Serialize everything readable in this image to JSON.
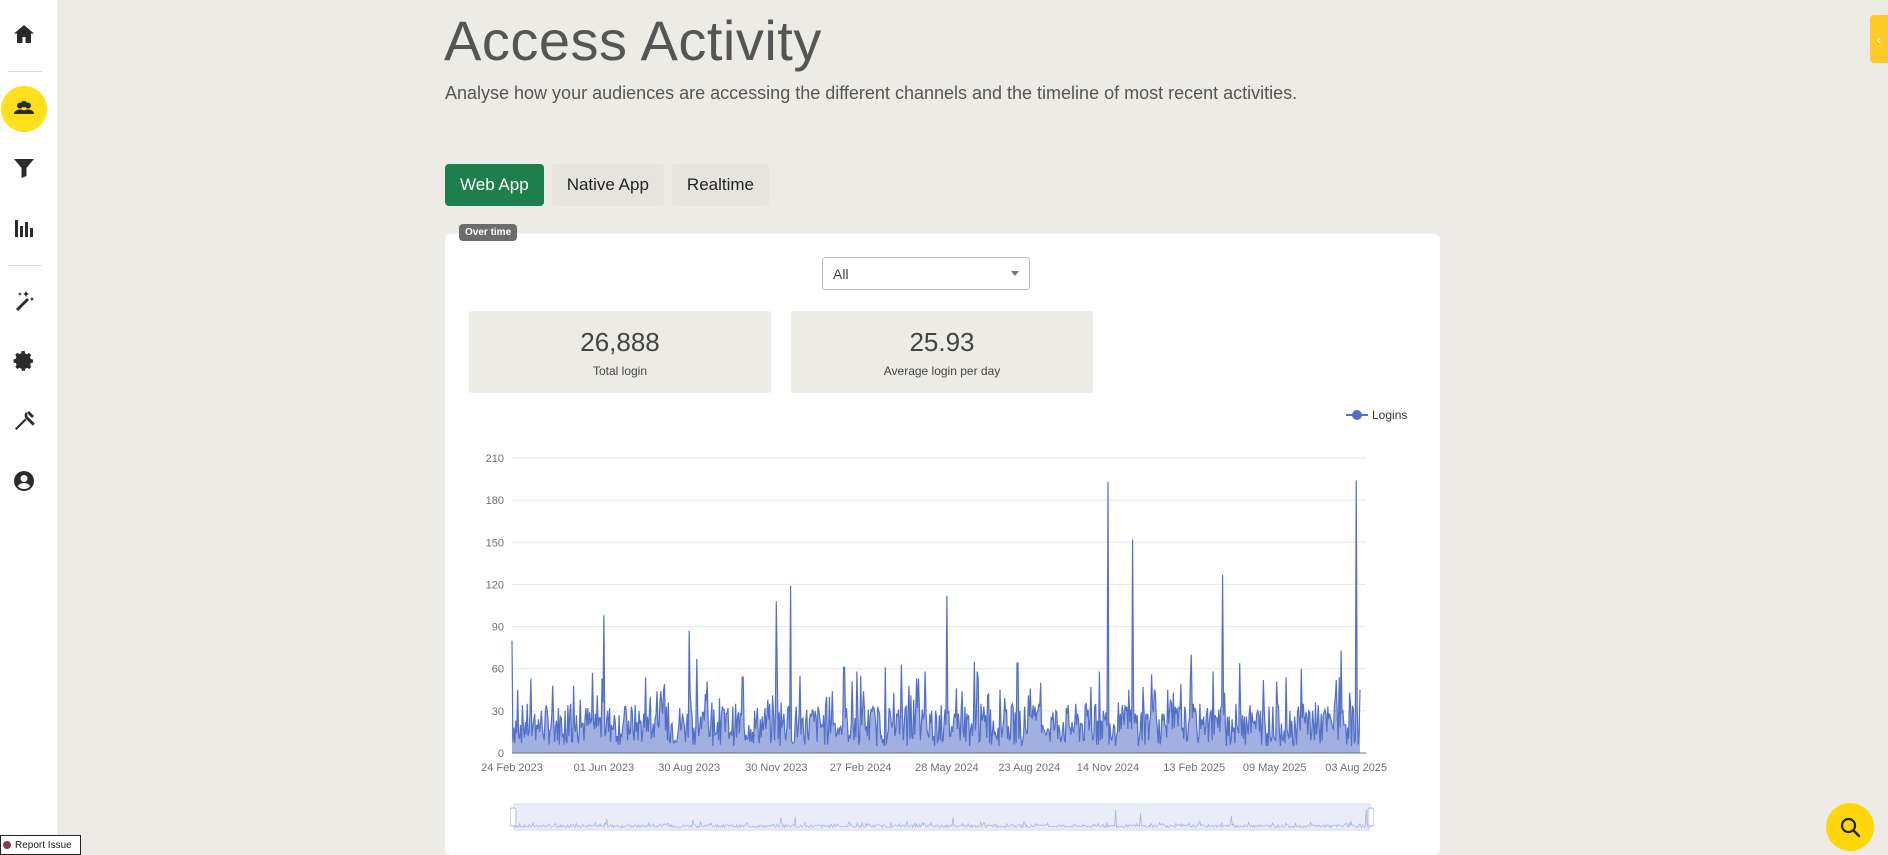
{
  "page": {
    "title": "Access Activity",
    "subtitle": "Analyse how your audiences are accessing the different channels and the timeline of most recent activities."
  },
  "sidebar": {
    "items": [
      {
        "icon": "home-icon",
        "active": false
      },
      {
        "icon": "audience-icon",
        "active": true
      },
      {
        "icon": "filter-icon",
        "active": false
      },
      {
        "icon": "bar-chart-icon",
        "active": false
      },
      {
        "icon": "magic-wand-icon",
        "active": false
      },
      {
        "icon": "gear-icon",
        "active": false
      },
      {
        "icon": "tools-icon",
        "active": false
      },
      {
        "icon": "user-circle-icon",
        "active": false
      }
    ]
  },
  "tabs": [
    {
      "label": "Web App",
      "active": true
    },
    {
      "label": "Native App",
      "active": false
    },
    {
      "label": "Realtime",
      "active": false
    }
  ],
  "badge": "Over time",
  "filter": {
    "selected": "All"
  },
  "stats": [
    {
      "value": "26,888",
      "label": "Total login"
    },
    {
      "value": "25.93",
      "label": "Average login per day"
    }
  ],
  "report_issue": "Report Issue",
  "colors": {
    "accent": "#1e7f4d",
    "highlight": "#ffe01a",
    "series": "#5470c6"
  },
  "chart_data": {
    "type": "area",
    "legend": [
      "Logins"
    ],
    "legend_position": "top-right",
    "ylim": [
      0,
      210
    ],
    "yticks": [
      0,
      30,
      60,
      90,
      120,
      150,
      180,
      210
    ],
    "xtick_labels": [
      "24 Feb 2023",
      "01 Jun 2023",
      "30 Aug 2023",
      "30 Nov 2023",
      "27 Feb 2024",
      "28 May 2024",
      "23 Aug 2024",
      "14 Nov 2024",
      "13 Feb 2025",
      "09 May 2025",
      "03 Aug 2025"
    ],
    "grid": true,
    "series": [
      {
        "name": "Logins",
        "peaks": [
          {
            "date": "24 Feb 2023",
            "value": 80
          },
          {
            "date": "01 Jun 2023",
            "value": 98
          },
          {
            "date": "30 Aug 2023",
            "value": 87
          },
          {
            "date": "30 Nov 2023",
            "value": 108
          },
          {
            "date": "15 Dec 2023",
            "value": 119
          },
          {
            "date": "28 May 2024",
            "value": 112
          },
          {
            "date": "14 Nov 2024",
            "value": 193
          },
          {
            "date": "10 Dec 2024",
            "value": 152
          },
          {
            "date": "15 Mar 2025",
            "value": 127
          },
          {
            "date": "03 Aug 2025",
            "value": 194
          }
        ]
      }
    ]
  }
}
